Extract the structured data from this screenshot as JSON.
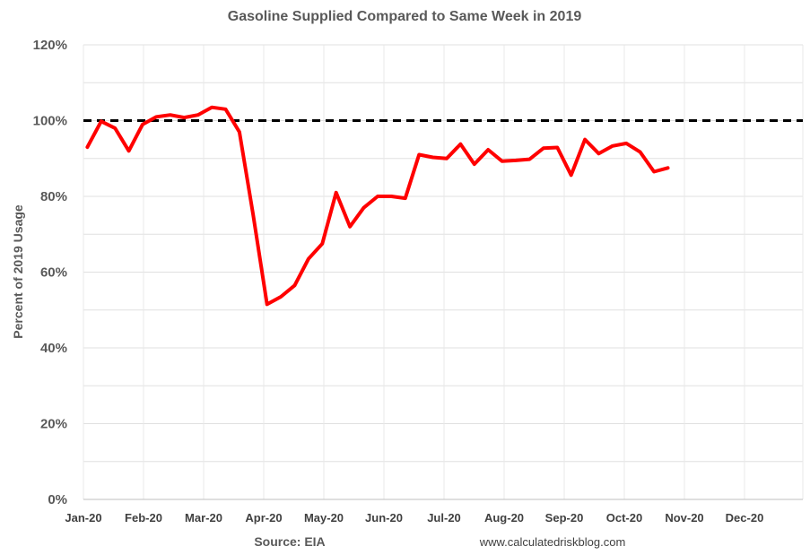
{
  "chart_data": {
    "type": "line",
    "title": "Gasoline Supplied Compared to Same Week in 2019",
    "ylabel": "Percent of 2019 Usage",
    "source": "Source: EIA",
    "credit": "www.calculatedriskblog.com",
    "ylim": [
      0,
      120
    ],
    "y_ticks": [
      "0%",
      "20%",
      "40%",
      "60%",
      "80%",
      "100%",
      "120%"
    ],
    "y_tick_values": [
      0,
      20,
      40,
      60,
      80,
      100,
      120
    ],
    "x_ticks": [
      "Jan-20",
      "Feb-20",
      "Mar-20",
      "Apr-20",
      "May-20",
      "Jun-20",
      "Jul-20",
      "Aug-20",
      "Sep-20",
      "Oct-20",
      "Nov-20",
      "Dec-20"
    ],
    "reference_line": {
      "value": 100,
      "style": "dashed",
      "color": "#000000"
    },
    "series": [
      {
        "color": "#ff0000",
        "x": [
          "2020-01-03",
          "2020-01-10",
          "2020-01-17",
          "2020-01-24",
          "2020-01-31",
          "2020-02-07",
          "2020-02-14",
          "2020-02-21",
          "2020-02-28",
          "2020-03-06",
          "2020-03-13",
          "2020-03-20",
          "2020-03-27",
          "2020-04-03",
          "2020-04-10",
          "2020-04-17",
          "2020-04-24",
          "2020-05-01",
          "2020-05-08",
          "2020-05-15",
          "2020-05-22",
          "2020-05-29",
          "2020-06-05",
          "2020-06-12",
          "2020-06-19",
          "2020-06-26",
          "2020-07-03",
          "2020-07-10",
          "2020-07-17",
          "2020-07-24",
          "2020-07-31",
          "2020-08-07",
          "2020-08-14",
          "2020-08-21",
          "2020-08-28",
          "2020-09-04",
          "2020-09-11",
          "2020-09-18",
          "2020-09-25",
          "2020-10-02",
          "2020-10-09",
          "2020-10-16",
          "2020-10-23"
        ],
        "values": [
          93,
          99.8,
          98,
          92,
          99,
          101,
          101.5,
          100.8,
          101.5,
          103.5,
          103,
          97,
          75,
          51.5,
          53.5,
          56.5,
          63.5,
          67.5,
          81,
          72,
          77,
          80,
          80,
          79.5,
          91,
          90.3,
          90,
          93.8,
          88.5,
          92.3,
          89.3,
          89.5,
          89.8,
          92.7,
          92.9,
          85.6,
          95,
          91.3,
          93.3,
          94,
          91.7,
          86.5,
          87.5
        ]
      }
    ],
    "grid": true,
    "legend": "none"
  }
}
